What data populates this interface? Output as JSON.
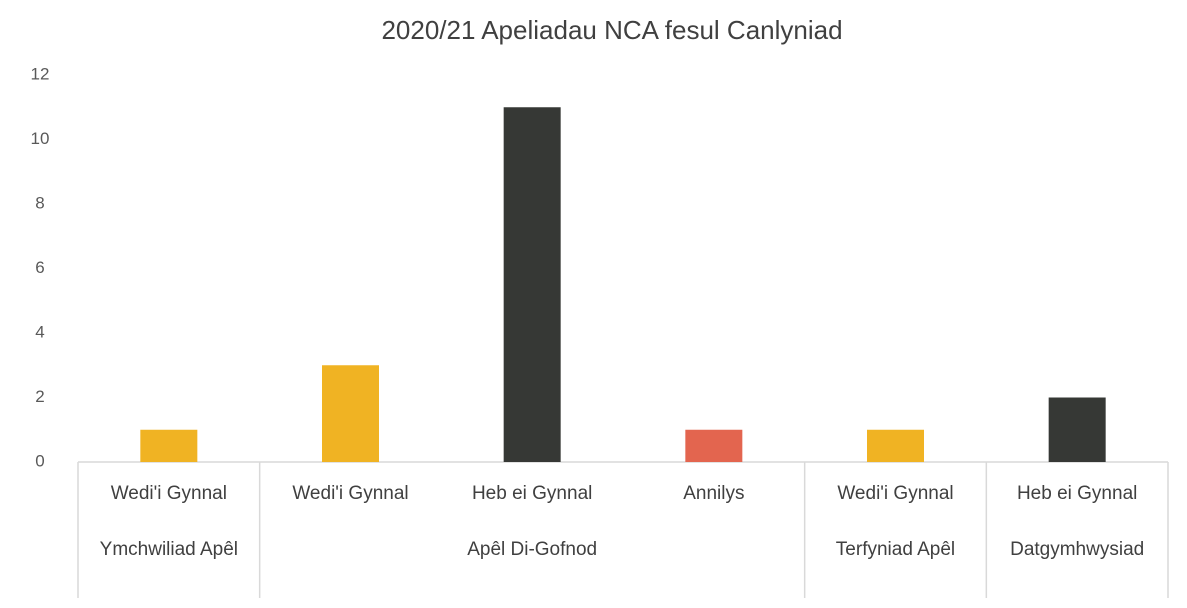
{
  "chart_data": {
    "type": "bar",
    "title": "2020/21 Apeliadau NCA fesul Canlyniad",
    "groups": [
      {
        "name": "Ymchwiliad Apêl",
        "categories": [
          "Wedi'i Gynnal"
        ],
        "values": [
          1
        ],
        "colors": [
          "#f0b323"
        ]
      },
      {
        "name": "Apêl Di-Gofnod",
        "categories": [
          "Wedi'i Gynnal",
          "Heb ei Gynnal",
          "Annilys"
        ],
        "values": [
          3,
          11,
          1
        ],
        "colors": [
          "#f0b323",
          "#363835",
          "#e3654f"
        ]
      },
      {
        "name": "Terfyniad Apêl",
        "categories": [
          "Wedi'i Gynnal"
        ],
        "values": [
          1
        ],
        "colors": [
          "#f0b323"
        ]
      },
      {
        "name": "Datgymhwysiad",
        "categories": [
          "Heb ei Gynnal"
        ],
        "values": [
          2
        ],
        "colors": [
          "#363835"
        ]
      }
    ],
    "ylim": [
      0,
      12
    ],
    "yticks": [
      0,
      2,
      4,
      6,
      8,
      10,
      12
    ],
    "grid": false
  }
}
